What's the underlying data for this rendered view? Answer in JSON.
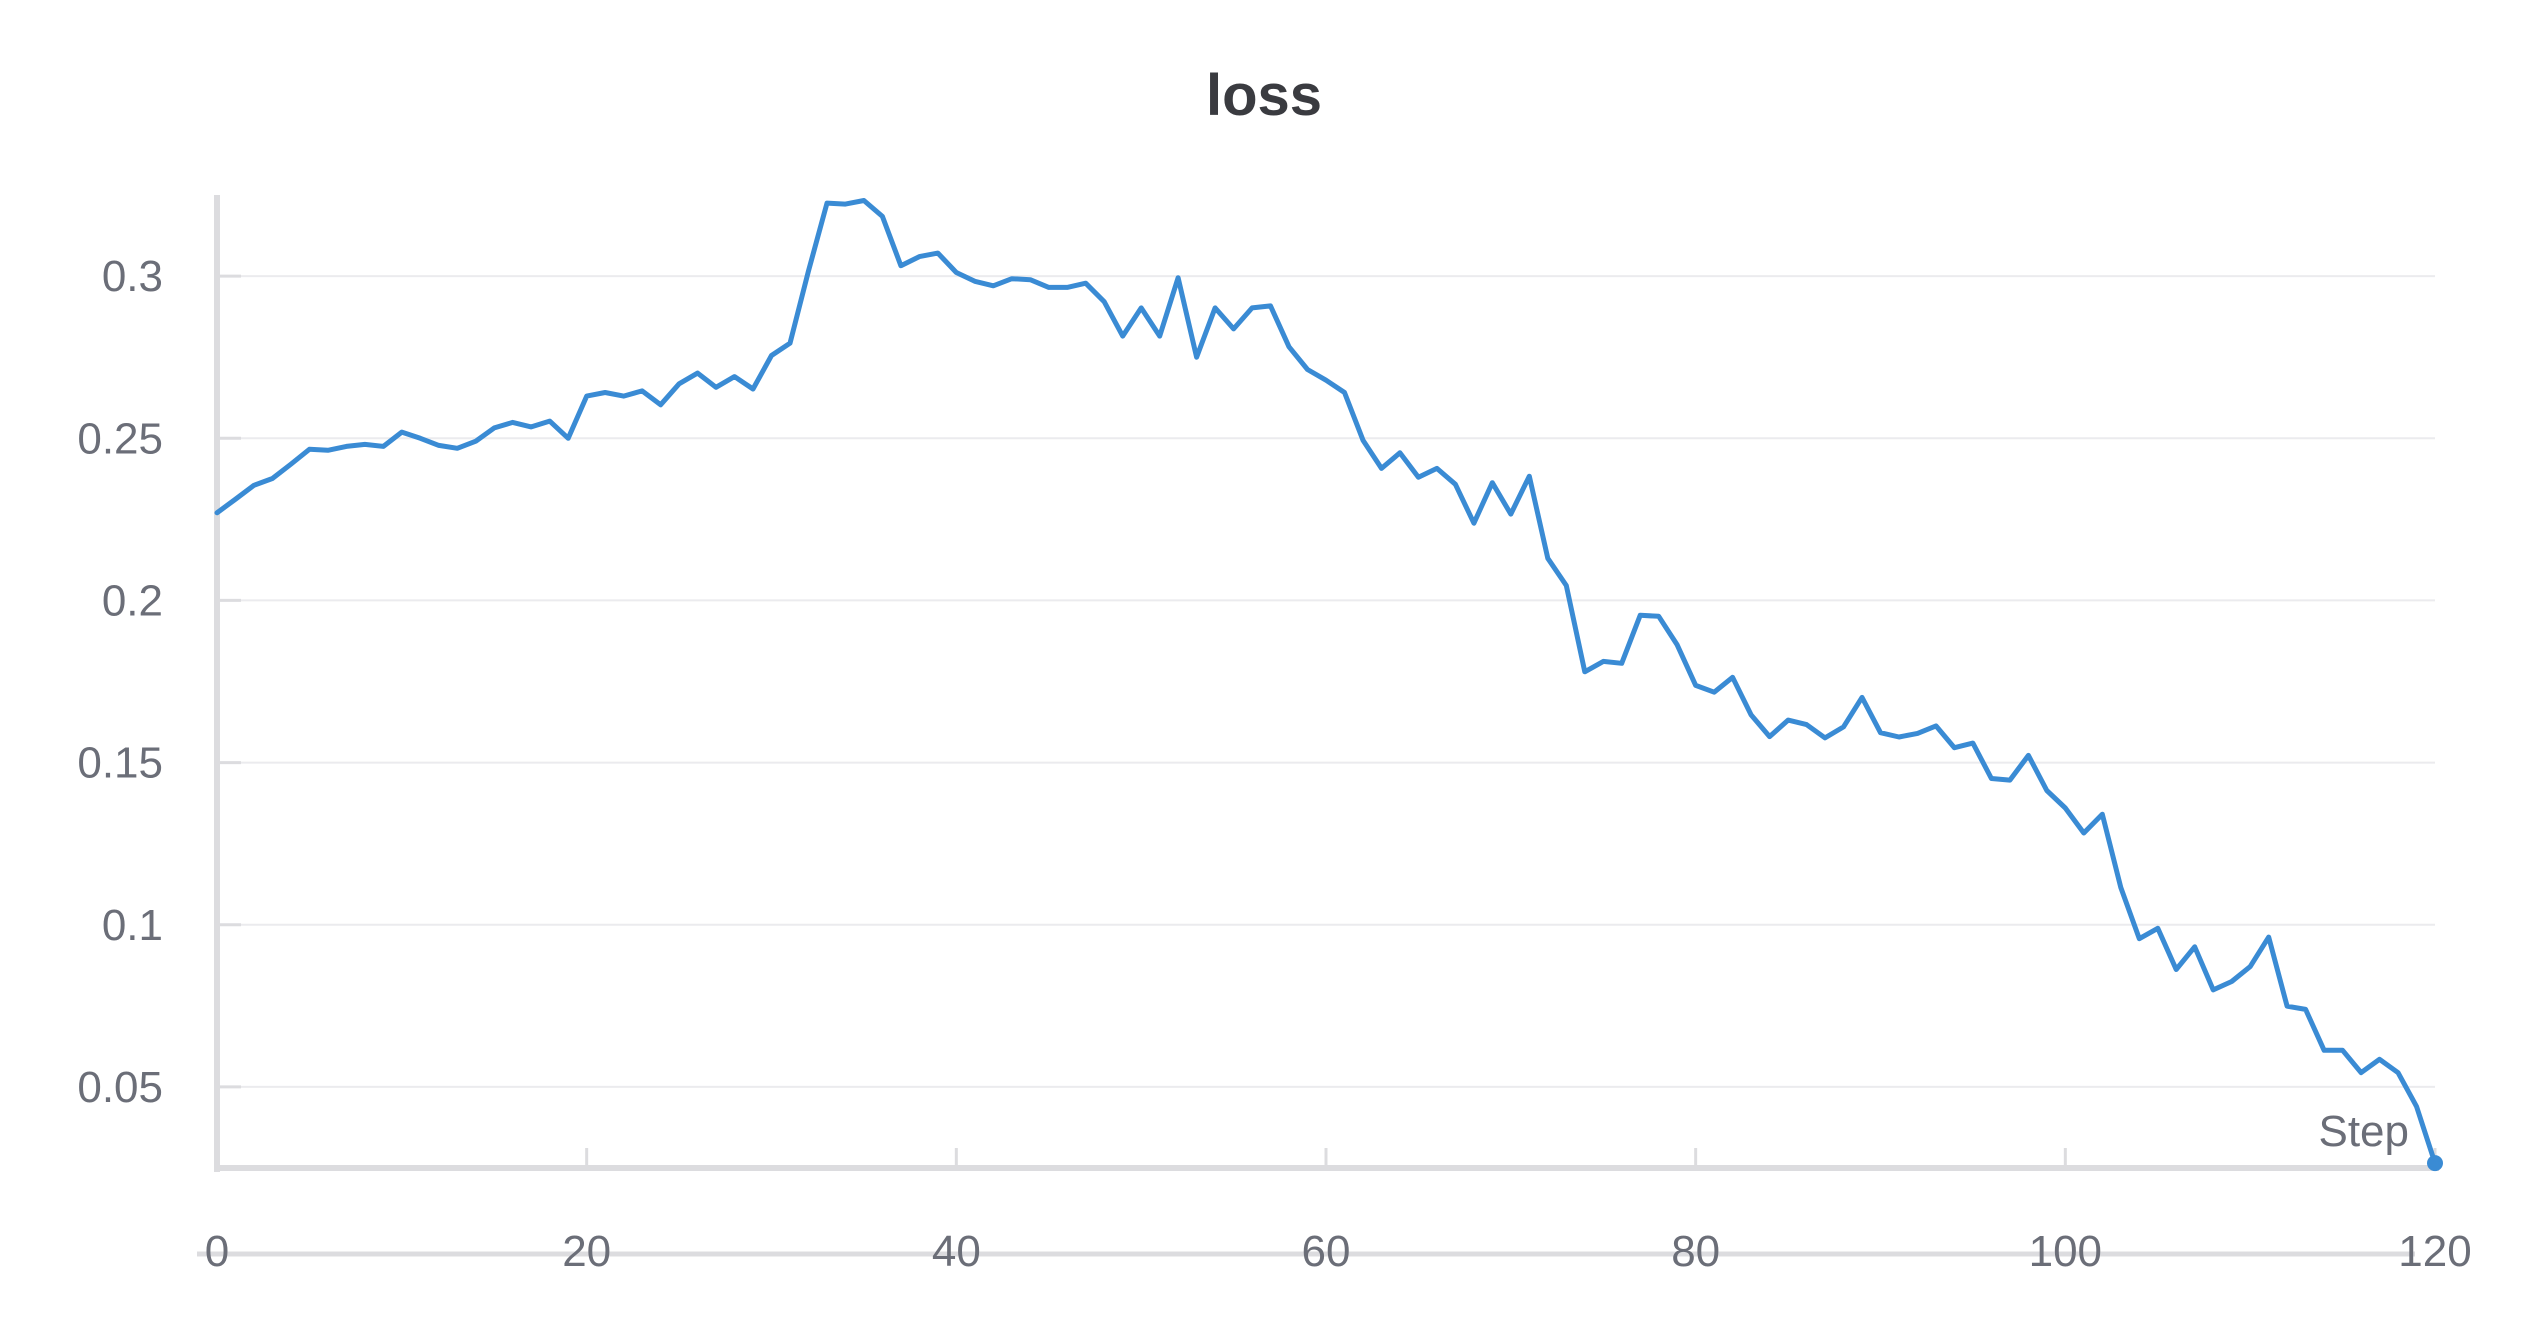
{
  "chart_data": {
    "type": "line",
    "title": "loss",
    "xlabel": "Step",
    "ylabel": "",
    "xlim": [
      0,
      120
    ],
    "ylim": [
      0.025,
      0.325
    ],
    "grid": true,
    "x_ticks": [
      0,
      20,
      40,
      60,
      80,
      100,
      120
    ],
    "x_tick_labels": [
      "0",
      "20",
      "40",
      "60",
      "80",
      "100",
      "120"
    ],
    "y_ticks": [
      0.05,
      0.1,
      0.15,
      0.2,
      0.25,
      0.3
    ],
    "y_tick_labels": [
      "0.05",
      "0.1",
      "0.15",
      "0.2",
      "0.25",
      "0.3"
    ],
    "series_color": "#3a8bd4",
    "axis_color": "#dcdcdf",
    "grid_color": "#ebebee",
    "series": [
      {
        "x": [
          0,
          1,
          2,
          3,
          4,
          5,
          6,
          7,
          8,
          9,
          10,
          11,
          12,
          13,
          14,
          15,
          16,
          17,
          18,
          19,
          20,
          21,
          22,
          23,
          24,
          25,
          26,
          27,
          28,
          29,
          30,
          31,
          32,
          33,
          34,
          35,
          36,
          37,
          38,
          39,
          40,
          41,
          42,
          43,
          44,
          45,
          46,
          47,
          48,
          49,
          50,
          51,
          52,
          53,
          54,
          55,
          56,
          57,
          58,
          59,
          60,
          61,
          62,
          63,
          64,
          65,
          66,
          67,
          68,
          69,
          70,
          71,
          72,
          73,
          74,
          75,
          76,
          77,
          78,
          79,
          80,
          81,
          82,
          83,
          84,
          85,
          86,
          87,
          88,
          89,
          90,
          91,
          92,
          93,
          94,
          95,
          96,
          97,
          98,
          99,
          100,
          101,
          102,
          103,
          104,
          105,
          106,
          107,
          108,
          109,
          110,
          111,
          112,
          113,
          114,
          115,
          116,
          117,
          118,
          119,
          120
        ],
        "values": [
          0.227,
          0.2312,
          0.2355,
          0.2376,
          0.242,
          0.2466,
          0.2463,
          0.2475,
          0.2481,
          0.2475,
          0.2519,
          0.25,
          0.2478,
          0.2469,
          0.2491,
          0.2532,
          0.2549,
          0.2535,
          0.2553,
          0.25,
          0.263,
          0.2641,
          0.263,
          0.2646,
          0.2603,
          0.2668,
          0.2701,
          0.2657,
          0.269,
          0.2652,
          0.2755,
          0.2793,
          0.3016,
          0.3225,
          0.3222,
          0.3233,
          0.3184,
          0.3032,
          0.306,
          0.3071,
          0.3011,
          0.2984,
          0.297,
          0.2992,
          0.2989,
          0.2965,
          0.2965,
          0.2978,
          0.2921,
          0.2815,
          0.2902,
          0.2815,
          0.2995,
          0.275,
          0.2902,
          0.2837,
          0.2902,
          0.2908,
          0.2782,
          0.2712,
          0.2679,
          0.2641,
          0.2494,
          0.2407,
          0.2455,
          0.238,
          0.2407,
          0.2358,
          0.2238,
          0.2363,
          0.2266,
          0.2383,
          0.213,
          0.2046,
          0.178,
          0.1812,
          0.1806,
          0.1954,
          0.1951,
          0.1863,
          0.1738,
          0.1717,
          0.1763,
          0.1647,
          0.158,
          0.1631,
          0.1617,
          0.1576,
          0.161,
          0.1701,
          0.1592,
          0.1579,
          0.159,
          0.1613,
          0.1546,
          0.156,
          0.1451,
          0.1446,
          0.1522,
          0.1414,
          0.136,
          0.1283,
          0.1341,
          0.1115,
          0.0957,
          0.0989,
          0.0862,
          0.0932,
          0.0799,
          0.0825,
          0.0871,
          0.0962,
          0.0749,
          0.0739,
          0.0613,
          0.0613,
          0.0544,
          0.0585,
          0.0544,
          0.044,
          0.0265
        ]
      }
    ]
  }
}
